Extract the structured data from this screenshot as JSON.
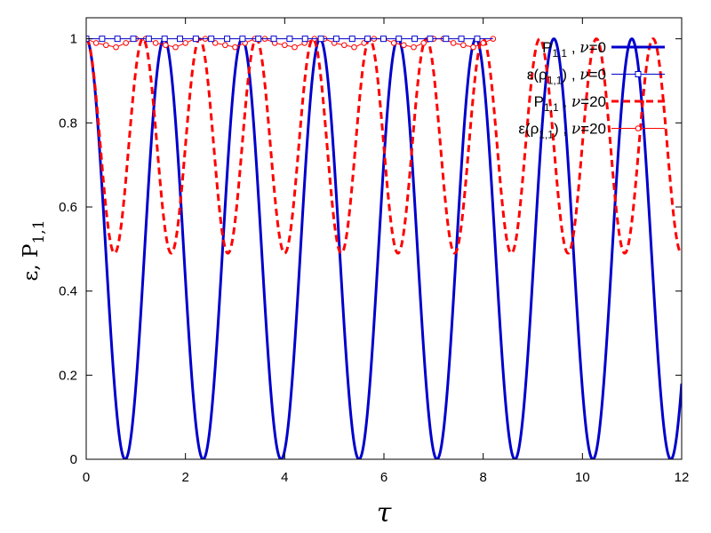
{
  "chart_data": {
    "type": "line",
    "xlabel": "τ",
    "ylabel": "ε, P",
    "ylabel_subscript": "1,1",
    "xlim": [
      0,
      12
    ],
    "ylim": [
      0,
      1.05
    ],
    "x_ticks": [
      0,
      2,
      4,
      6,
      8,
      10,
      12
    ],
    "y_ticks": [
      0,
      0.2,
      0.4,
      0.6,
      0.8,
      1
    ],
    "x_tick_labels": [
      "0",
      "2",
      "4",
      "6",
      "8",
      "10",
      "12"
    ],
    "y_tick_labels": [
      "0",
      "0.2",
      "0.4",
      "0.6",
      "0.8",
      "1"
    ],
    "grid": false,
    "legend_position": "top-right",
    "series": [
      {
        "name": "P1,1 , ν=0",
        "legend": {
          "main": "P",
          "sub": "1,1",
          "sep": " , ",
          "var": "ν",
          "eq": "=0"
        },
        "color": "#0000cc",
        "style": "solid",
        "formula": "cos2",
        "omega": 2.0,
        "x_range": [
          0,
          12
        ],
        "minima_x": [
          0.79,
          2.36,
          3.93,
          5.5,
          7.07,
          8.64,
          10.21,
          11.78
        ],
        "maxima_x": [
          0,
          1.57,
          3.14,
          4.71,
          6.28,
          7.85,
          9.42,
          10.99
        ]
      },
      {
        "name": "ε(ρ1,1) , ν=0",
        "legend": {
          "main": "ε(ρ",
          "sub": "1,1",
          "close": ")",
          "sep": " , ",
          "var": "ν",
          "eq": "=0"
        },
        "color": "#0000cc",
        "style": "markers-square",
        "x": [
          0,
          0.32,
          0.63,
          0.95,
          1.26,
          1.58,
          1.89,
          2.21,
          2.52,
          2.84,
          3.15,
          3.47,
          3.78,
          4.1,
          4.41,
          4.73,
          5.04,
          5.36,
          5.67,
          5.99,
          6.3,
          6.62,
          6.93,
          7.25,
          7.56,
          7.88
        ],
        "y": [
          1,
          1,
          1,
          1,
          1,
          1,
          1,
          1,
          1,
          1,
          1,
          1,
          1,
          1,
          1,
          1,
          1,
          1,
          1,
          1,
          1,
          1,
          1,
          1,
          1,
          1
        ],
        "line_x_range": [
          0,
          8.2
        ]
      },
      {
        "name": "P1,1 , ν=20",
        "legend": {
          "main": "P",
          "sub": "1,1",
          "sep": " , ",
          "var": "ν",
          "eq": "=20"
        },
        "color": "#ff0000",
        "style": "dashed",
        "formula": "half-plus-half-cos2",
        "omega": 2.75,
        "x_range": [
          0,
          12
        ],
        "minima_y": 0.49
      },
      {
        "name": "ε(ρ1,1) , ν=20",
        "legend": {
          "main": "ε(ρ",
          "sub": "1,1",
          "close": ")",
          "sep": " , ",
          "var": "ν",
          "eq": "=20"
        },
        "color": "#ff0000",
        "style": "line-circles",
        "x": [
          0,
          0.2,
          0.4,
          0.6,
          0.8,
          1.0,
          1.2,
          1.4,
          1.6,
          1.8,
          2.0,
          2.2,
          2.4,
          2.6,
          2.8,
          3.0,
          3.2,
          3.4,
          3.6,
          3.8,
          4.0,
          4.2,
          4.4,
          4.6,
          4.8,
          5.0,
          5.2,
          5.4,
          5.6,
          5.8,
          6.0,
          6.2,
          6.4,
          6.6,
          6.8,
          7.0,
          7.2,
          7.4,
          7.6,
          7.8,
          8.0,
          8.2
        ],
        "y": [
          1,
          0.99,
          0.985,
          0.98,
          0.99,
          1,
          1,
          0.99,
          0.985,
          0.98,
          0.99,
          1,
          1,
          0.99,
          0.985,
          0.98,
          0.99,
          1,
          1,
          0.99,
          0.985,
          0.98,
          0.99,
          1,
          1,
          0.99,
          0.985,
          0.98,
          0.99,
          1,
          1,
          0.99,
          0.985,
          0.98,
          0.99,
          1,
          1,
          0.99,
          0.985,
          0.98,
          0.99,
          1
        ]
      }
    ]
  }
}
